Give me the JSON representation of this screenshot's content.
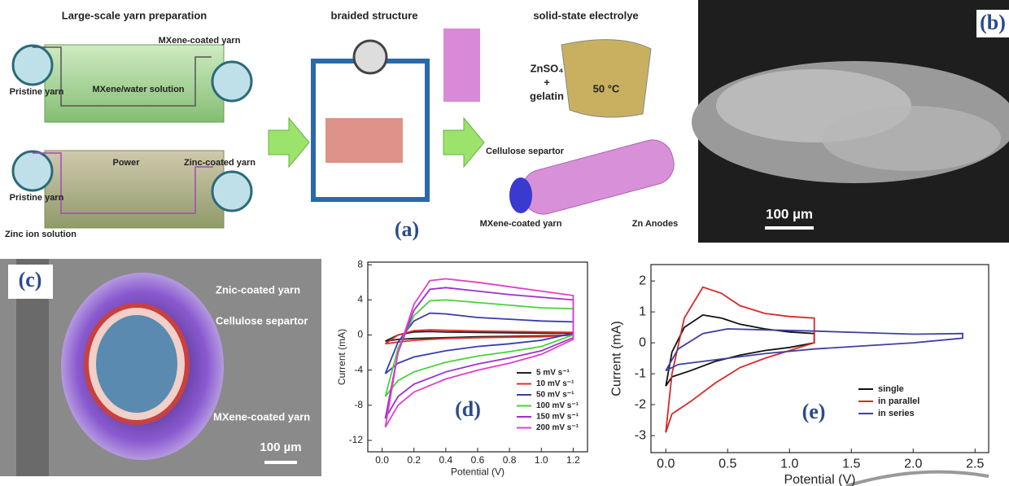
{
  "panel_a": {
    "label": "(a)",
    "labels": [
      "Large-scale yarn preparation",
      "braided structure",
      "solid-state electrolye",
      "MXene-coated yarn",
      "Pristine yarn",
      "MXene/water solution",
      "Power",
      "Zinc-coated yarn",
      "Pristine yarn",
      "Zinc ion solution",
      "ZnSO₄",
      "+",
      "gelatin",
      "50 °C",
      "Cellulose separtor",
      "MXene-coated yarn",
      "Zn Anodes"
    ]
  },
  "panel_b": {
    "label": "(b)",
    "scale": "100 µm"
  },
  "panel_c": {
    "label": "(c)",
    "labels": [
      "Znic-coated yarn",
      "Cellulose separtor",
      "MXene-coated yarn"
    ],
    "scale": "100 µm"
  },
  "chart_data": [
    {
      "type": "line",
      "label": "(d)",
      "x_label": "Potential (V)",
      "y_label": "Current (mA)",
      "x": [
        0.02,
        0.1,
        0.2,
        0.3,
        0.4,
        0.6,
        0.8,
        1.0,
        1.2,
        1.2,
        1.0,
        0.8,
        0.6,
        0.4,
        0.2,
        0.1,
        0.02
      ],
      "series": [
        {
          "name": "5 mV s⁻¹",
          "color": "#222222",
          "values": [
            -0.7,
            0,
            0.35,
            0.4,
            0.35,
            0.3,
            0.25,
            0.2,
            0.2,
            0,
            -0.1,
            -0.15,
            -0.2,
            -0.3,
            -0.4,
            -0.5,
            -0.7
          ]
        },
        {
          "name": "10 mV s⁻¹",
          "color": "#e0302a",
          "values": [
            -1,
            0,
            0.5,
            0.6,
            0.55,
            0.45,
            0.4,
            0.35,
            0.3,
            0,
            -0.2,
            -0.25,
            -0.3,
            -0.4,
            -0.6,
            -0.8,
            -1
          ]
        },
        {
          "name": "50 mV s⁻¹",
          "color": "#3a3ab0",
          "values": [
            -4.4,
            -0.8,
            1.6,
            2.5,
            2.4,
            2.0,
            1.8,
            1.6,
            1.5,
            0.2,
            -0.6,
            -1.0,
            -1.3,
            -1.8,
            -2.5,
            -3.2,
            -4.4
          ]
        },
        {
          "name": "100 mV s⁻¹",
          "color": "#4cd13a",
          "values": [
            -7,
            -1.5,
            2.2,
            3.9,
            4.0,
            3.7,
            3.4,
            3.1,
            3.0,
            0,
            -1.3,
            -1.9,
            -2.4,
            -3.1,
            -4.2,
            -5.2,
            -7
          ]
        },
        {
          "name": "150 mV s⁻¹",
          "color": "#9b30d0",
          "values": [
            -9.5,
            -2,
            2.8,
            5.2,
            5.4,
            5.0,
            4.6,
            4.3,
            4.0,
            -0.3,
            -1.8,
            -2.6,
            -3.3,
            -4.2,
            -5.6,
            -7.0,
            -9.5
          ]
        },
        {
          "name": "200 mV s⁻¹",
          "color": "#e040c8",
          "values": [
            -10.5,
            -2,
            3.5,
            6.2,
            6.4,
            6.0,
            5.5,
            5.0,
            4.5,
            -0.5,
            -2.2,
            -3.2,
            -4.0,
            -5.0,
            -6.5,
            -8.0,
            -10.5
          ]
        }
      ],
      "xlim": [
        -0.09,
        1.29
      ],
      "ylim": [
        -13.3,
        8.3
      ],
      "xticks": [
        {
          "value": 0,
          "label": "0.0"
        },
        0.2,
        0.4,
        0.6,
        0.8,
        {
          "value": 1,
          "label": "1.0"
        },
        1.2
      ],
      "yticks": [
        -12,
        -8,
        -4,
        0,
        4,
        8
      ],
      "grid": false,
      "legend": "lower right"
    },
    {
      "type": "line",
      "label": "(e)",
      "x_label": "Potential (V)",
      "y_label": "Current (mA)",
      "series": [
        {
          "name": "single",
          "color": "#111111",
          "x": [
            0,
            0.05,
            0.15,
            0.3,
            0.45,
            0.6,
            0.8,
            1.0,
            1.2,
            1.2,
            1.0,
            0.8,
            0.6,
            0.4,
            0.2,
            0.05,
            0
          ],
          "values": [
            -1.4,
            -0.3,
            0.5,
            0.9,
            0.8,
            0.6,
            0.45,
            0.35,
            0.3,
            0,
            -0.15,
            -0.25,
            -0.4,
            -0.6,
            -0.9,
            -1.1,
            -1.4
          ]
        },
        {
          "name": "in parallel",
          "color": "#d42a2a",
          "x": [
            0,
            0.05,
            0.15,
            0.3,
            0.45,
            0.6,
            0.8,
            1.0,
            1.2,
            1.2,
            1.0,
            0.8,
            0.6,
            0.4,
            0.2,
            0.05,
            0
          ],
          "values": [
            -2.9,
            -1,
            0.8,
            1.8,
            1.6,
            1.2,
            0.95,
            0.85,
            0.8,
            0,
            -0.25,
            -0.5,
            -0.8,
            -1.3,
            -1.9,
            -2.3,
            -2.9
          ]
        },
        {
          "name": "in series",
          "color": "#4040a0",
          "x": [
            0,
            0.1,
            0.3,
            0.5,
            0.8,
            1.2,
            1.6,
            2.0,
            2.4,
            2.4,
            2.0,
            1.6,
            1.2,
            0.8,
            0.4,
            0.1,
            0
          ],
          "values": [
            -0.9,
            -0.2,
            0.3,
            0.45,
            0.42,
            0.38,
            0.33,
            0.28,
            0.3,
            0.15,
            0,
            -0.1,
            -0.2,
            -0.35,
            -0.55,
            -0.7,
            -0.9
          ]
        }
      ],
      "xlim": [
        -0.12,
        2.61
      ],
      "ylim": [
        -3.55,
        2.53
      ],
      "xticks": [
        {
          "value": 0,
          "label": "0.0"
        },
        0.5,
        {
          "value": 1,
          "label": "1.0"
        },
        1.5,
        {
          "value": 2,
          "label": "2.0"
        },
        2.5
      ],
      "yticks": [
        -3,
        -2,
        -1,
        0,
        1,
        2
      ],
      "grid": false,
      "legend": "lower right"
    }
  ]
}
